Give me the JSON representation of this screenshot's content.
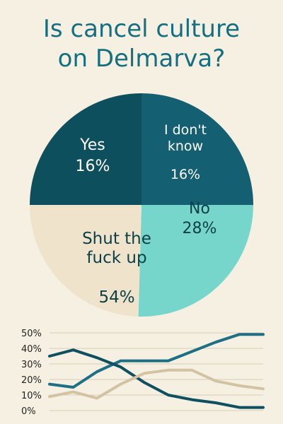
{
  "title": {
    "line1": "Is cancel culture",
    "line2": "on Delmarva?"
  },
  "colors": {
    "background": "#f6f0e2",
    "title": "#146f82",
    "yes": "#0e4f5d",
    "dont_know": "#155f72",
    "no": "#77d6cc",
    "shut_up": "#efe3cb",
    "text_dark": "#0c3f48",
    "text_light": "#ffffff",
    "line_dark": "#0e5060",
    "line_mid": "#1c6f85",
    "line_tan": "#d2c3a3",
    "grid": "#d8cdb8"
  },
  "chart_data": [
    {
      "type": "pie",
      "title": "Is cancel culture on Delmarva?",
      "slices": [
        {
          "label": "Yes",
          "value": 16,
          "value_label": "16%"
        },
        {
          "label": "I don't know",
          "value": 16,
          "value_label": "16%"
        },
        {
          "label": "No",
          "value": 28,
          "value_label": "28%"
        },
        {
          "label": "Shut the fuck up",
          "value": 54,
          "value_label": "54%"
        }
      ]
    },
    {
      "type": "line",
      "ylim": [
        0,
        50
      ],
      "yticks": [
        "0%",
        "10%",
        "20%",
        "30%",
        "40%",
        "50%"
      ],
      "ytick_values": [
        0,
        10,
        20,
        30,
        40,
        50
      ],
      "grid": true,
      "x": [
        0,
        1,
        2,
        3,
        4,
        5,
        6,
        7,
        8,
        9
      ],
      "series": [
        {
          "values": [
            17,
            15,
            25,
            32,
            32,
            32,
            38,
            44,
            49,
            49
          ]
        },
        {
          "values": [
            35,
            39,
            34,
            28,
            18,
            10,
            7,
            5,
            2,
            2
          ]
        },
        {
          "values": [
            9,
            12,
            8,
            17,
            24,
            26,
            26,
            19,
            16,
            14
          ]
        }
      ]
    }
  ]
}
